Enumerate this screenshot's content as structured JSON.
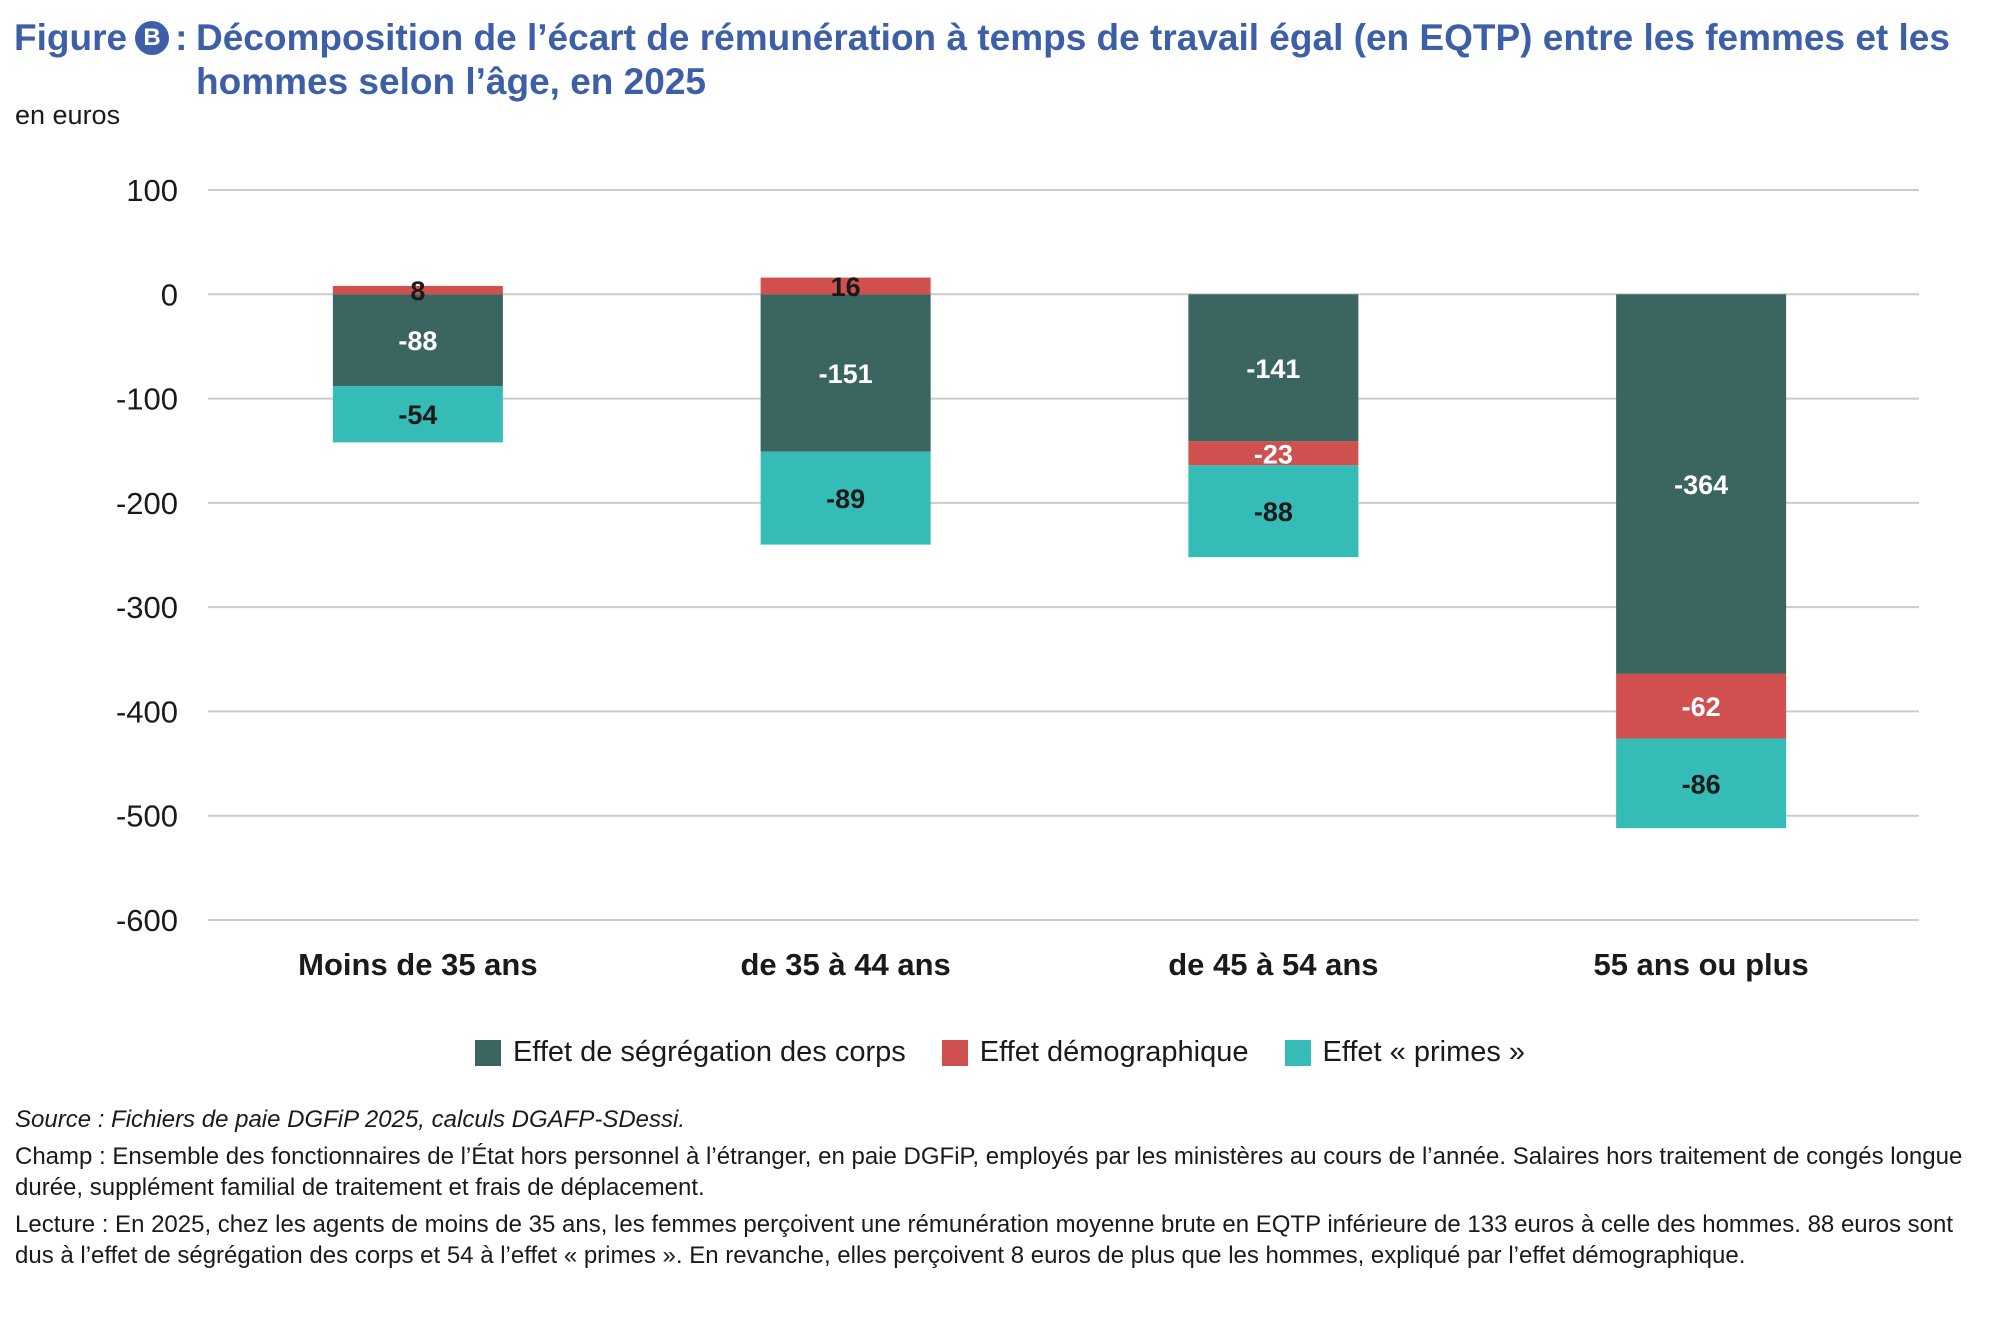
{
  "title": {
    "prefix": "Figure",
    "badge": "B",
    "separator": ":",
    "line1": "Décomposition de l’écart de rémunération à temps de travail égal (en EQTP) entre les femmes et les",
    "line2": "hommes selon l’âge, en 2025"
  },
  "unit_label": "en euros",
  "colors": {
    "segregation": "#3a6560",
    "demographique": "#d04f4f",
    "primes": "#35bcb6",
    "title": "#3d5fa8",
    "grid": "#cccccc"
  },
  "chart_data": {
    "type": "bar",
    "stacked": true,
    "title": "Décomposition de l’écart de rémunération à temps de travail égal (en EQTP) entre les femmes et les hommes selon l’âge, en 2025",
    "ylabel": "en euros",
    "xlabel": "",
    "ylim": [
      -600,
      100
    ],
    "yticks": [
      100,
      0,
      -100,
      -200,
      -300,
      -400,
      -500,
      -600
    ],
    "grid": true,
    "legend_position": "bottom",
    "categories": [
      "Moins de 35 ans",
      "de 35 à 44 ans",
      "de 45 à 54 ans",
      "55 ans ou plus"
    ],
    "series": [
      {
        "name": "Effet de ségrégation des corps",
        "key": "segregation",
        "values": [
          -88,
          -151,
          -141,
          -364
        ]
      },
      {
        "name": "Effet démographique",
        "key": "demographique",
        "values": [
          8,
          16,
          -23,
          -62
        ]
      },
      {
        "name": "Effet « primes »",
        "key": "primes",
        "values": [
          -54,
          -89,
          -88,
          -86
        ]
      }
    ]
  },
  "legend": [
    {
      "label": "Effet de ségrégation des corps",
      "key": "segregation"
    },
    {
      "label": "Effet démographique",
      "key": "demographique"
    },
    {
      "label": "Effet « primes »",
      "key": "primes"
    }
  ],
  "notes": {
    "source": "Source : Fichiers de paie DGFiP 2025, calculs DGAFP-SDessi.",
    "champ": "Champ : Ensemble des fonctionnaires de l’État hors personnel à l’étranger, en paie DGFiP, employés par les ministères au cours de l’année. Salaires hors traitement de congés longue durée, supplément familial de traitement et frais de déplacement.",
    "lecture": "Lecture : En 2025, chez les agents de moins de 35 ans, les femmes perçoivent une rémunération moyenne brute en EQTP inférieure de 133 euros à celle des hommes. 88 euros sont dus à l’effet de ségrégation des corps et 54 à l’effet « primes ». En revanche, elles perçoivent 8 euros de plus que les hommes, expliqué par l’effet démographique."
  }
}
